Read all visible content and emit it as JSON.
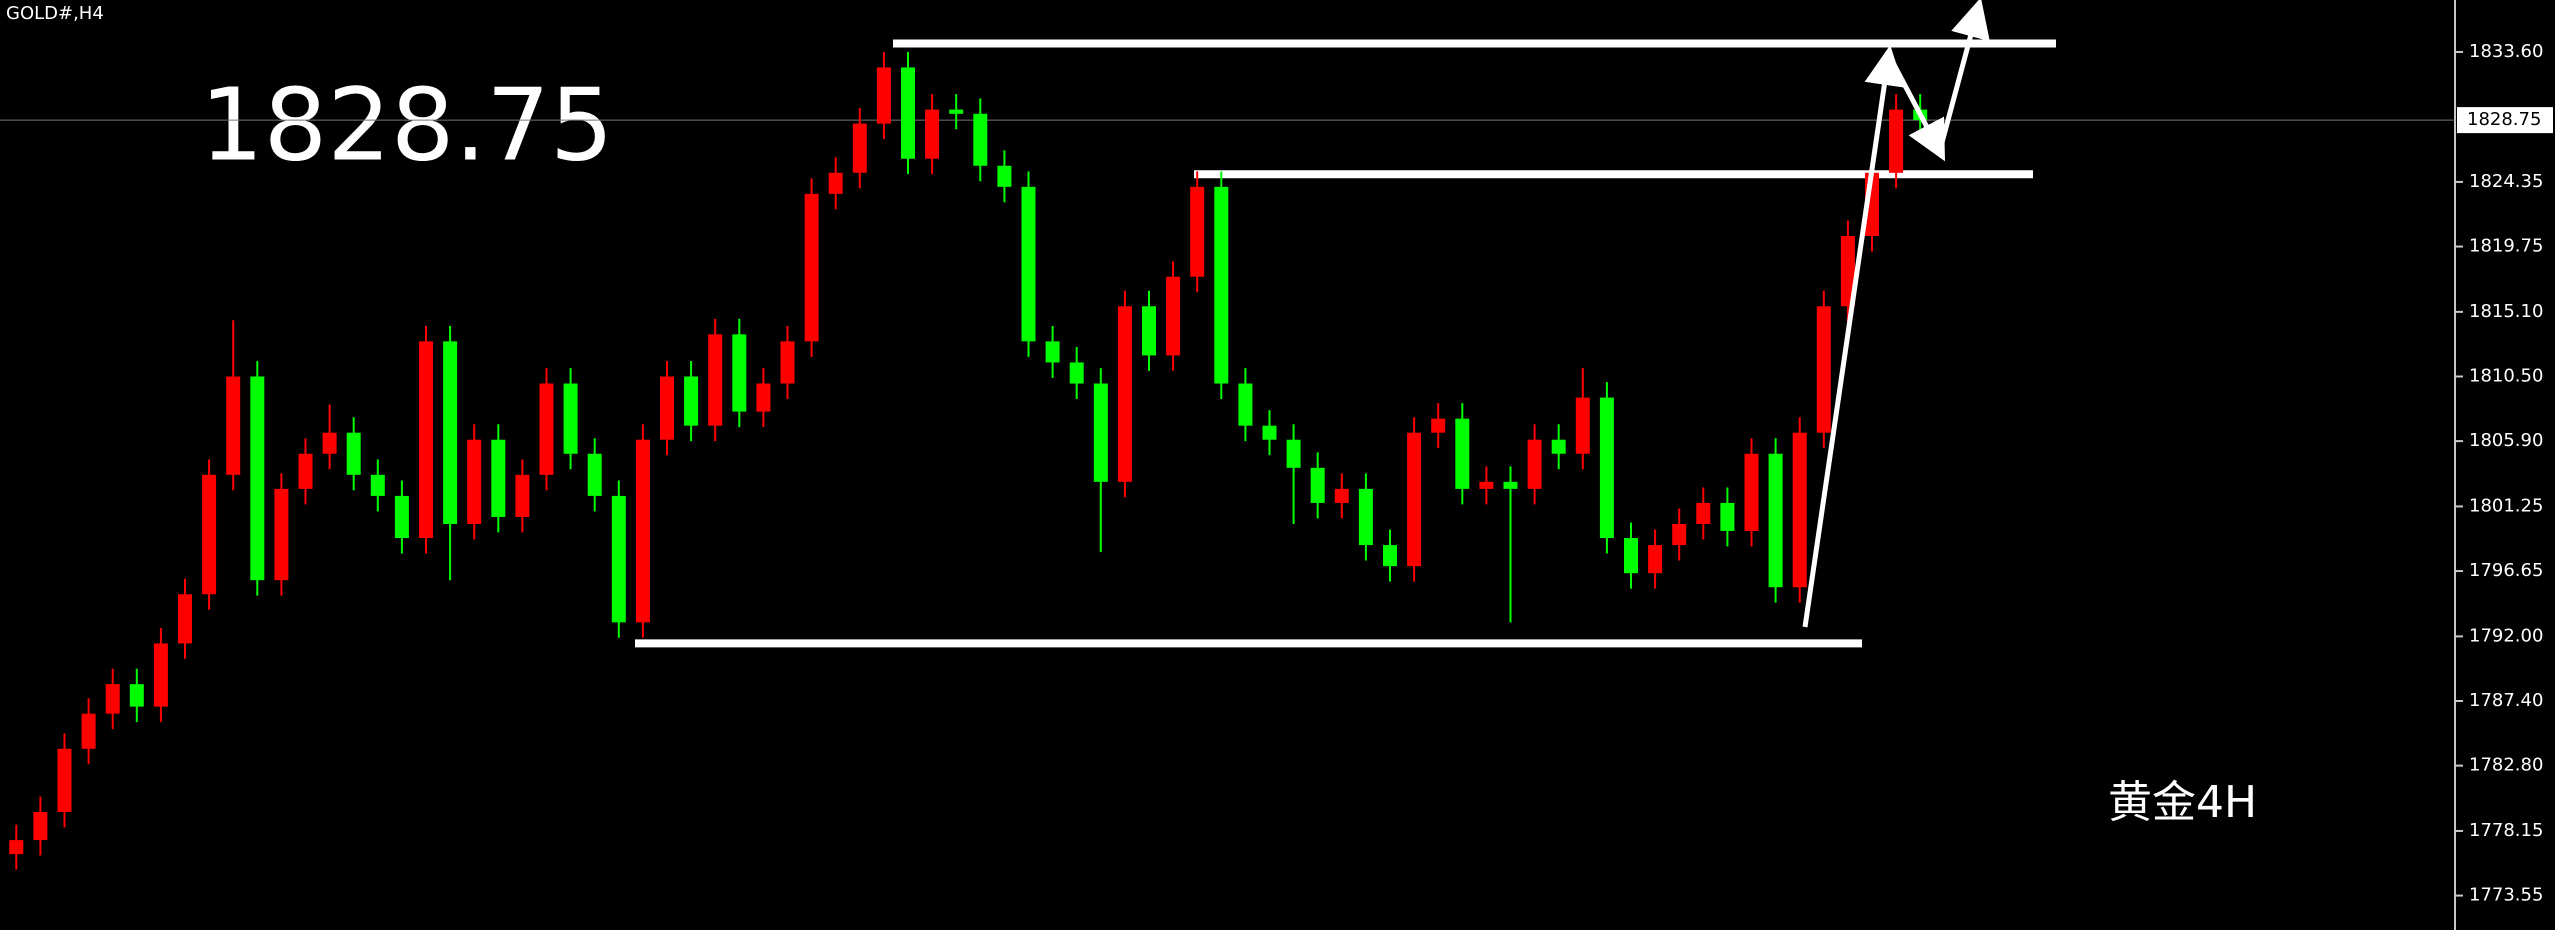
{
  "chart_data": {
    "type": "candlestick",
    "title": "GOLD#,H4",
    "last_price": 1828.75,
    "annotation": "黄金4H",
    "open": [
      1776.5,
      1777.5,
      1779.5,
      1784,
      1786.5,
      1788.6,
      1787,
      1791.5,
      1795,
      1803.5,
      1810.5,
      1796,
      1802.5,
      1805,
      1806.5,
      1803.5,
      1802,
      1799,
      1813,
      1800,
      1806,
      1800.5,
      1803.5,
      1810,
      1805,
      1802,
      1793,
      1806,
      1810.5,
      1807,
      1813.5,
      1808,
      1810,
      1813,
      1823.5,
      1825,
      1828.5,
      1832.5,
      1826,
      1829.5,
      1829.2,
      1825.5,
      1824,
      1813,
      1811.5,
      1810,
      1803,
      1815.5,
      1812,
      1817.6,
      1824,
      1810,
      1807,
      1806,
      1804,
      1801.5,
      1802.5,
      1798.5,
      1797,
      1806.5,
      1807.5,
      1802.5,
      1803,
      1802.5,
      1806,
      1805,
      1809,
      1799,
      1796.5,
      1798.5,
      1800,
      1801.5,
      1799.5,
      1805,
      1795.5,
      1806.5,
      1815.5,
      1820.5,
      1825,
      1829.5
    ],
    "high": [
      1778.6,
      1780.6,
      1785.1,
      1787.6,
      1789.7,
      1789.7,
      1792.6,
      1796.1,
      1804.6,
      1814.5,
      1811.6,
      1803.6,
      1806.1,
      1808.5,
      1807.6,
      1804.6,
      1803.1,
      1814.1,
      1814.1,
      1807.1,
      1807.1,
      1804.6,
      1811.1,
      1811.1,
      1806.1,
      1803.1,
      1807.1,
      1811.6,
      1811.6,
      1814.6,
      1814.6,
      1811.1,
      1814.1,
      1824.6,
      1826.1,
      1829.6,
      1833.6,
      1833.6,
      1830.6,
      1830.6,
      1830.3,
      1826.6,
      1825.1,
      1814.1,
      1812.6,
      1811.1,
      1816.6,
      1816.6,
      1818.7,
      1825.1,
      1825.1,
      1811.1,
      1808.1,
      1807.1,
      1805.1,
      1803.6,
      1803.6,
      1799.6,
      1807.6,
      1808.6,
      1808.6,
      1804.1,
      1804.1,
      1807.1,
      1807.1,
      1811.1,
      1810.1,
      1800.1,
      1799.6,
      1801.1,
      1802.6,
      1802.6,
      1806.1,
      1806.1,
      1807.6,
      1816.6,
      1821.6,
      1826.1,
      1830.6,
      1830.6
    ],
    "low": [
      1775.4,
      1776.4,
      1778.4,
      1782.9,
      1785.4,
      1785.9,
      1785.9,
      1790.4,
      1793.9,
      1802.4,
      1794.9,
      1794.9,
      1801.4,
      1803.9,
      1802.4,
      1800.9,
      1797.9,
      1797.9,
      1796,
      1798.9,
      1799.4,
      1799.4,
      1802.4,
      1803.9,
      1800.9,
      1791.9,
      1791.9,
      1804.9,
      1805.9,
      1805.9,
      1806.9,
      1806.9,
      1808.9,
      1811.9,
      1822.4,
      1823.9,
      1827.4,
      1824.9,
      1824.9,
      1828.1,
      1824.4,
      1822.9,
      1811.9,
      1810.4,
      1808.9,
      1798,
      1801.9,
      1810.9,
      1810.9,
      1816.5,
      1808.9,
      1805.9,
      1804.9,
      1800,
      1800.4,
      1800.4,
      1797.4,
      1795.9,
      1795.9,
      1805.4,
      1801.4,
      1801.4,
      1793,
      1801.4,
      1803.9,
      1803.9,
      1797.9,
      1795.4,
      1795.4,
      1797.4,
      1798.9,
      1798.4,
      1798.4,
      1794.4,
      1794.4,
      1805.4,
      1814.4,
      1819.4,
      1823.9,
      1827.9
    ],
    "close": [
      1777.5,
      1779.5,
      1784,
      1786.5,
      1788.6,
      1787,
      1791.5,
      1795,
      1803.5,
      1810.5,
      1796,
      1802.5,
      1805,
      1806.5,
      1803.5,
      1802,
      1799,
      1813,
      1800,
      1806,
      1800.5,
      1803.5,
      1810,
      1805,
      1802,
      1793,
      1806,
      1810.5,
      1807,
      1813.5,
      1808,
      1810,
      1813,
      1823.5,
      1825,
      1828.5,
      1832.5,
      1826,
      1829.5,
      1829.2,
      1825.5,
      1824,
      1813,
      1811.5,
      1810,
      1803,
      1815.5,
      1812,
      1817.6,
      1824,
      1810,
      1807,
      1806,
      1804,
      1801.5,
      1802.5,
      1798.5,
      1797,
      1806.5,
      1807.5,
      1802.5,
      1803,
      1802.5,
      1806,
      1805,
      1809,
      1799,
      1796.5,
      1798.5,
      1800,
      1801.5,
      1799.5,
      1805,
      1795.5,
      1806.5,
      1815.5,
      1820.5,
      1825,
      1829.5,
      1828.75
    ],
    "up_color": "#ff0000",
    "down_color": "#00ff00",
    "levels": [
      1834.2,
      1824.9,
      1791.5
    ],
    "ylim": [
      1771.1,
      1837.3
    ],
    "yticks": [
      {
        "value": 1833.6,
        "label": "1833.60"
      },
      1824.35,
      1819.75,
      {
        "value": 1815.1,
        "label": "1815.10"
      },
      {
        "value": 1810.5,
        "label": "1810.50"
      },
      {
        "value": 1805.9,
        "label": "1805.90"
      },
      1801.25,
      1796.65,
      {
        "value": 1792,
        "label": "1792.00"
      },
      {
        "value": 1787.4,
        "label": "1787.40"
      },
      {
        "value": 1782.8,
        "label": "1782.80"
      },
      1778.15,
      1773.55
    ]
  }
}
